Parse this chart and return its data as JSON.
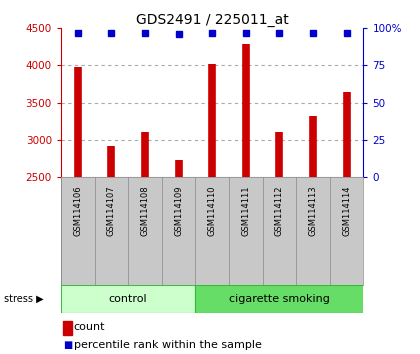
{
  "title": "GDS2491 / 225011_at",
  "samples": [
    "GSM114106",
    "GSM114107",
    "GSM114108",
    "GSM114109",
    "GSM114110",
    "GSM114111",
    "GSM114112",
    "GSM114113",
    "GSM114114"
  ],
  "counts": [
    3980,
    2920,
    3100,
    2730,
    4020,
    4290,
    3110,
    3320,
    3640
  ],
  "percentiles": [
    97,
    97,
    97,
    96,
    97,
    97,
    97,
    97,
    97
  ],
  "ylim": [
    2500,
    4500
  ],
  "yticks": [
    2500,
    3000,
    3500,
    4000,
    4500
  ],
  "y2lim": [
    0,
    100
  ],
  "y2ticks": [
    0,
    25,
    50,
    75,
    100
  ],
  "y2ticklabels": [
    "0",
    "25",
    "50",
    "75",
    "100%"
  ],
  "bar_color": "#cc0000",
  "dot_color": "#0000cc",
  "grid_color": "#aaaaaa",
  "control_group": [
    0,
    1,
    2,
    3
  ],
  "smoking_group": [
    4,
    5,
    6,
    7,
    8
  ],
  "control_label": "control",
  "smoking_label": "cigarette smoking",
  "stress_label": "stress",
  "legend_count": "count",
  "legend_pct": "percentile rank within the sample",
  "control_color": "#ccffcc",
  "smoking_color": "#66dd66",
  "label_row_color": "#c8c8c8",
  "tick_label_color_left": "#cc0000",
  "tick_label_color_right": "#0000cc",
  "bg_color": "#ffffff"
}
